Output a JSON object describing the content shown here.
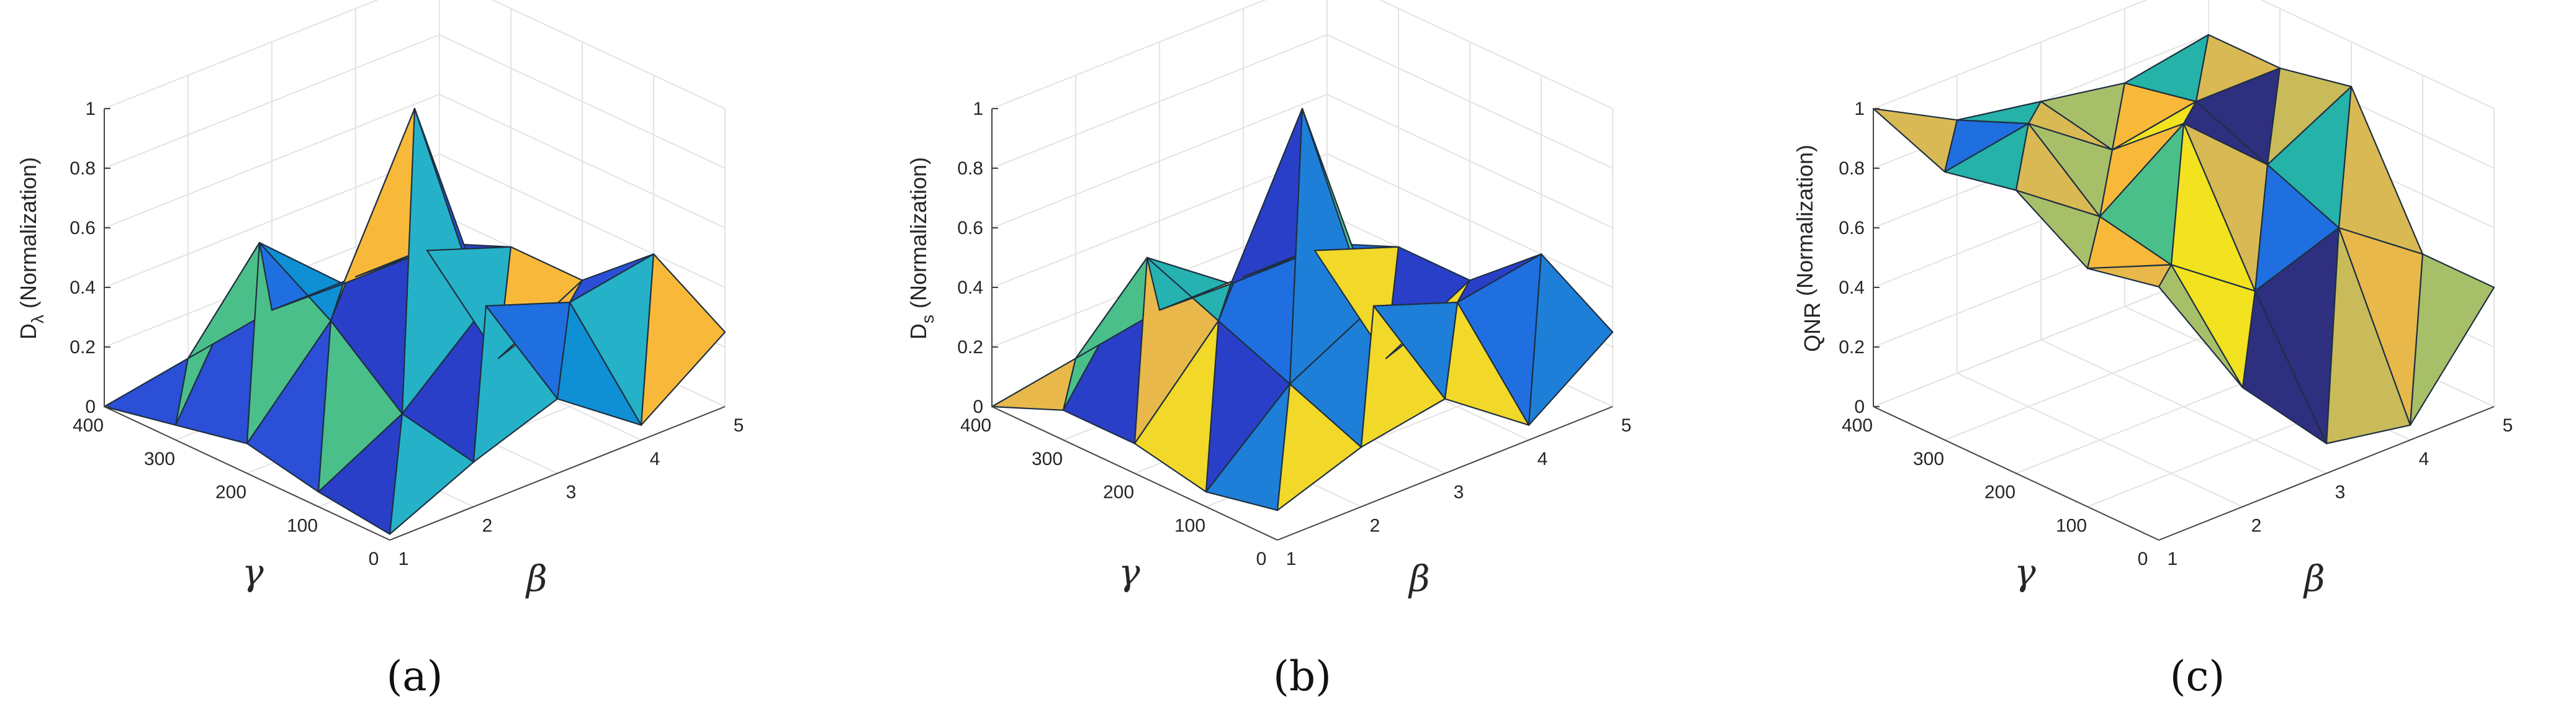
{
  "figure": {
    "panels": [
      {
        "label": "(a)",
        "zlabel_main": "D",
        "zlabel_sub": "λ",
        "zlabel_rest": " (Normalization)",
        "xlabel": "γ",
        "ylabel": "β"
      },
      {
        "label": "(b)",
        "zlabel_main": "D",
        "zlabel_sub": "s",
        "zlabel_rest": " (Normalization)",
        "xlabel": "γ",
        "ylabel": "β"
      },
      {
        "label": "(c)",
        "zlabel_main": "QNR",
        "zlabel_sub": "",
        "zlabel_rest": " (Normalization)",
        "xlabel": "γ",
        "ylabel": "β"
      }
    ]
  },
  "chart_data": [
    {
      "type": "surface",
      "title": "(a)",
      "xlabel": "γ",
      "ylabel": "β",
      "zlabel": "Dλ (Normalization)",
      "x": [
        0,
        100,
        200,
        300,
        400
      ],
      "y": [
        1,
        2,
        3,
        4,
        5
      ],
      "zlim": [
        0,
        1
      ],
      "xticks": [
        "0",
        "100",
        "200",
        "300",
        "400"
      ],
      "yticks": [
        "1",
        "2",
        "3",
        "4",
        "5"
      ],
      "zticks": [
        "0",
        "0.2",
        "0.4",
        "0.6",
        "0.8",
        "1"
      ],
      "z": [
        [
          0.02,
          0.15,
          0.25,
          0.05,
          0.25
        ],
        [
          0.05,
          0.2,
          0.45,
          0.35,
          0.4
        ],
        [
          0.1,
          0.4,
          1.0,
          0.05,
          0.2
        ],
        [
          0.05,
          0.55,
          0.3,
          0.3,
          0.2
        ],
        [
          0.0,
          0.05,
          0.1,
          0.1,
          0.1
        ]
      ],
      "colors": [
        "#2a3fc8",
        "#2b4fd6",
        "#0f8fd4",
        "#25b2c8",
        "#4bbf8a",
        "#f2d829",
        "#f8b93a",
        "#1f6fe0"
      ],
      "grid": true,
      "legend": "none"
    },
    {
      "type": "surface",
      "title": "(b)",
      "xlabel": "γ",
      "ylabel": "β",
      "zlabel": "Ds (Normalization)",
      "x": [
        0,
        100,
        200,
        300,
        400
      ],
      "y": [
        1,
        2,
        3,
        4,
        5
      ],
      "zlim": [
        0,
        1
      ],
      "xticks": [
        "0",
        "100",
        "200",
        "300",
        "400"
      ],
      "yticks": [
        "1",
        "2",
        "3",
        "4",
        "5"
      ],
      "zticks": [
        "0",
        "0.2",
        "0.4",
        "0.6",
        "0.8",
        "1"
      ],
      "z": [
        [
          0.1,
          0.2,
          0.25,
          0.05,
          0.25
        ],
        [
          0.05,
          0.3,
          0.45,
          0.35,
          0.4
        ],
        [
          0.1,
          0.4,
          1.0,
          0.05,
          0.2
        ],
        [
          0.1,
          0.5,
          0.3,
          0.3,
          0.2
        ],
        [
          0.0,
          0.05,
          0.1,
          0.1,
          0.1
        ]
      ],
      "colors": [
        "#2a3fc8",
        "#1e7fd8",
        "#25b2b0",
        "#e8b84a",
        "#f2d829",
        "#1f6fe0",
        "#4bbf8a"
      ],
      "grid": true,
      "legend": "none"
    },
    {
      "type": "surface",
      "title": "(c)",
      "xlabel": "γ",
      "ylabel": "β",
      "zlabel": "QNR (Normalization)",
      "x": [
        0,
        100,
        200,
        300,
        400
      ],
      "y": [
        1,
        2,
        3,
        4,
        5
      ],
      "zlim": [
        0,
        1
      ],
      "xticks": [
        "0",
        "100",
        "200",
        "300",
        "400"
      ],
      "yticks": [
        "1",
        "2",
        "3",
        "4",
        "5"
      ],
      "zticks": [
        "0",
        "0.2",
        "0.4",
        "0.6",
        "0.8",
        "1"
      ],
      "z": [
        [
          0.85,
          0.4,
          0.1,
          0.05,
          0.4
        ],
        [
          0.8,
          0.7,
          0.5,
          0.6,
          0.4
        ],
        [
          0.95,
          0.75,
          0.95,
          0.7,
          0.85
        ],
        [
          0.9,
          0.95,
          0.75,
          0.8,
          0.8
        ],
        [
          1.0,
          0.85,
          0.8,
          0.75,
          0.8
        ]
      ],
      "colors": [
        "#f2e21f",
        "#d9b954",
        "#a8bf6a",
        "#2f2f80",
        "#1f6fe0",
        "#f8b93a",
        "#c9bb5a",
        "#4bbf8a",
        "#25b2a8",
        "#e8b84a"
      ],
      "grid": true,
      "legend": "none"
    }
  ]
}
